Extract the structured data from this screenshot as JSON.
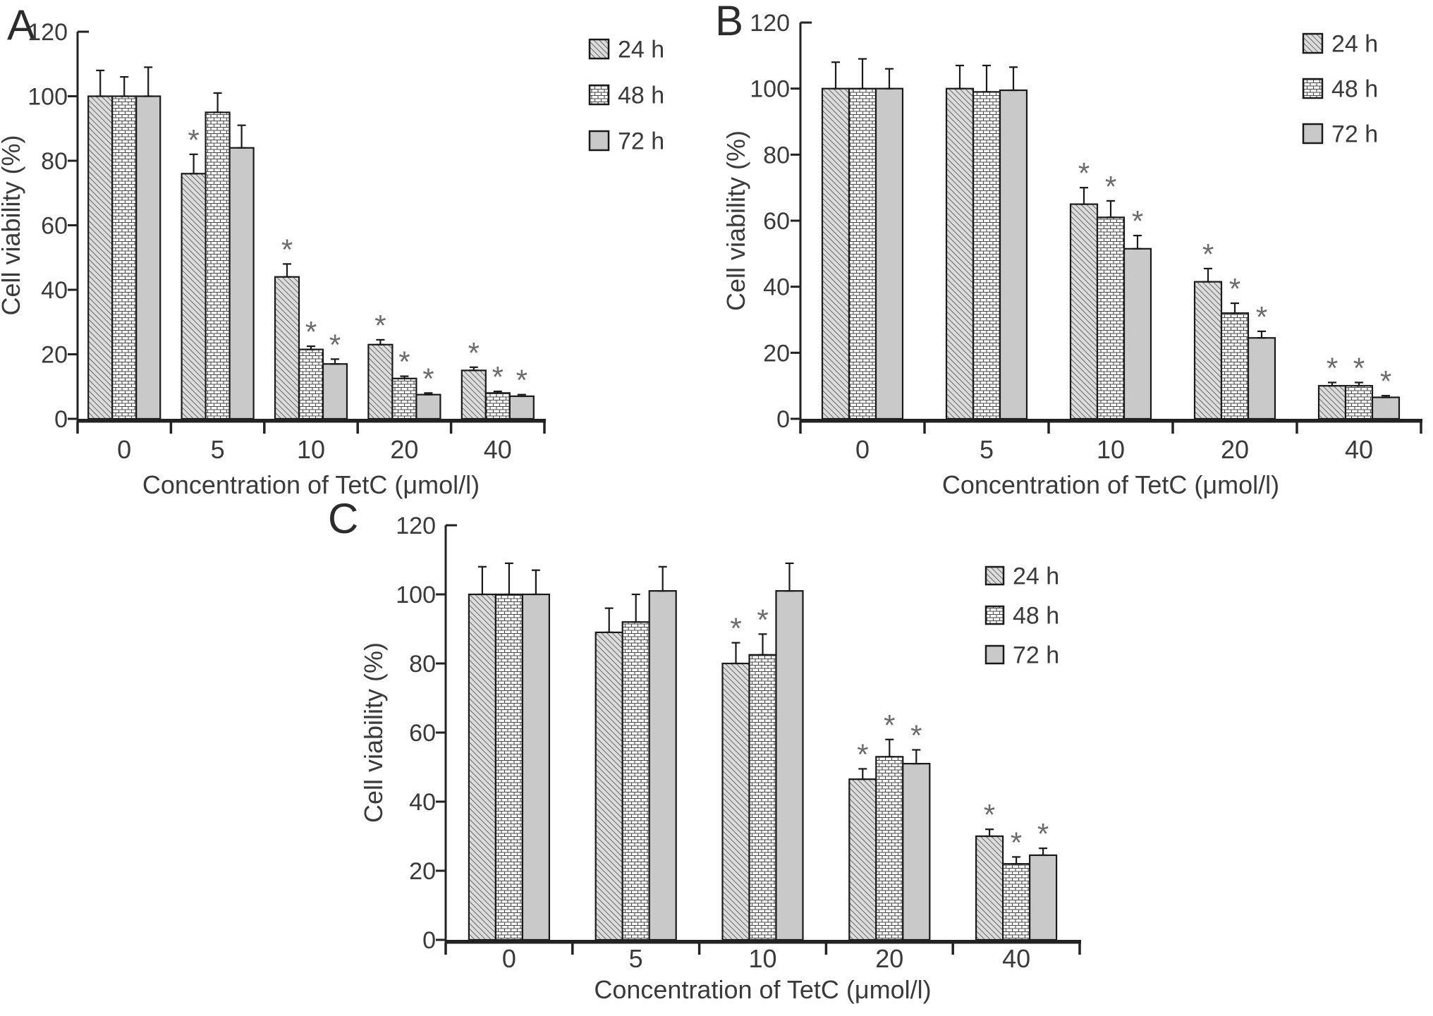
{
  "colors": {
    "background": "#ffffff",
    "bar_outline": "#1a1a1a",
    "hatch_bg": "#dcdcdc",
    "hatch_line": "#3f3f3f",
    "brick_bg": "#ffffff",
    "brick_line": "#4a4a4a",
    "solid_fill": "#c9c9c9",
    "axis": "#222222",
    "text": "#3a3a3a",
    "asterisk": "#6b6b6b"
  },
  "chart_data": [
    {
      "type": "bar",
      "panel_label": "A",
      "xlabel": "Concentration of TetC (μmol/l)",
      "ylabel": "Cell viability (%)",
      "categories": [
        "0",
        "5",
        "10",
        "20",
        "40"
      ],
      "ylim": [
        0,
        120
      ],
      "yticks": [
        0,
        20,
        40,
        60,
        80,
        100,
        120
      ],
      "grid": false,
      "legend_position": "top-right",
      "error_bars": true,
      "significance_marker": "*",
      "series": [
        {
          "name": "24 h",
          "pattern": "diagonal-hatch",
          "values": [
            100,
            76,
            44,
            23,
            15
          ],
          "errors": [
            8,
            6,
            4,
            1.5,
            1
          ],
          "significant": [
            false,
            true,
            true,
            true,
            true
          ]
        },
        {
          "name": "48 h",
          "pattern": "brick",
          "values": [
            100,
            95,
            21.5,
            12.5,
            8
          ],
          "errors": [
            6,
            6,
            1,
            0.7,
            0.5
          ],
          "significant": [
            false,
            false,
            true,
            true,
            true
          ]
        },
        {
          "name": "72 h",
          "pattern": "solid",
          "values": [
            100,
            84,
            17,
            7.5,
            7
          ],
          "errors": [
            9,
            7,
            1.5,
            0.5,
            0.5
          ],
          "significant": [
            false,
            false,
            true,
            true,
            true
          ]
        }
      ]
    },
    {
      "type": "bar",
      "panel_label": "B",
      "xlabel": "Concentration of TetC (μmol/l)",
      "ylabel": "Cell viability (%)",
      "categories": [
        "0",
        "5",
        "10",
        "20",
        "40"
      ],
      "ylim": [
        0,
        120
      ],
      "yticks": [
        0,
        20,
        40,
        60,
        80,
        100,
        120
      ],
      "grid": false,
      "legend_position": "top-right",
      "error_bars": true,
      "significance_marker": "*",
      "series": [
        {
          "name": "24 h",
          "pattern": "diagonal-hatch",
          "values": [
            100,
            100,
            65,
            41.5,
            10
          ],
          "errors": [
            8,
            7,
            5,
            4,
            1
          ],
          "significant": [
            false,
            false,
            true,
            true,
            true
          ]
        },
        {
          "name": "48 h",
          "pattern": "brick",
          "values": [
            100,
            99,
            61,
            32,
            10
          ],
          "errors": [
            9,
            8,
            5,
            3,
            1
          ],
          "significant": [
            false,
            false,
            true,
            true,
            true
          ]
        },
        {
          "name": "72 h",
          "pattern": "solid",
          "values": [
            100,
            99.5,
            51.5,
            24.5,
            6.5
          ],
          "errors": [
            6,
            7,
            4,
            2,
            0.5
          ],
          "significant": [
            false,
            false,
            true,
            true,
            true
          ]
        }
      ]
    },
    {
      "type": "bar",
      "panel_label": "C",
      "xlabel": "Concentration of TetC (μmol/l)",
      "ylabel": "Cell viability (%)",
      "categories": [
        "0",
        "5",
        "10",
        "20",
        "40"
      ],
      "ylim": [
        0,
        120
      ],
      "yticks": [
        0,
        20,
        40,
        60,
        80,
        100,
        120
      ],
      "grid": false,
      "legend_position": "top-right",
      "error_bars": true,
      "significance_marker": "*",
      "series": [
        {
          "name": "24 h",
          "pattern": "diagonal-hatch",
          "values": [
            100,
            89,
            80,
            46.5,
            30
          ],
          "errors": [
            8,
            7,
            6,
            3,
            2
          ],
          "significant": [
            false,
            false,
            true,
            true,
            true
          ]
        },
        {
          "name": "48 h",
          "pattern": "brick",
          "values": [
            100,
            92,
            82.5,
            53,
            22
          ],
          "errors": [
            9,
            8,
            6,
            5,
            2
          ],
          "significant": [
            false,
            false,
            true,
            true,
            true
          ]
        },
        {
          "name": "72 h",
          "pattern": "solid",
          "values": [
            100,
            101,
            101,
            51,
            24.5
          ],
          "errors": [
            7,
            7,
            8,
            4,
            2
          ],
          "significant": [
            false,
            false,
            false,
            true,
            true
          ]
        }
      ]
    }
  ]
}
